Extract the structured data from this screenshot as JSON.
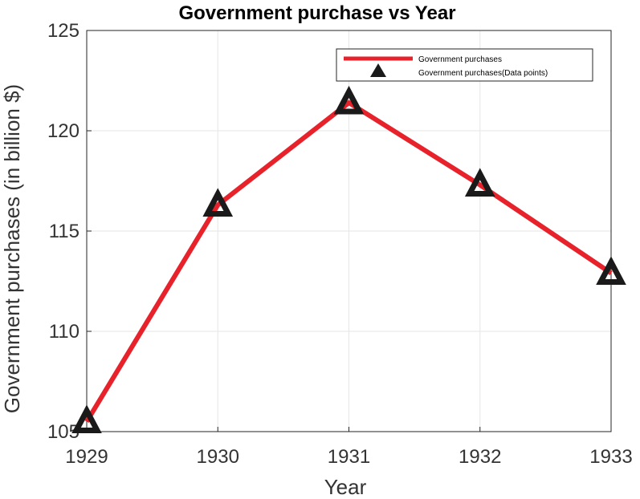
{
  "chart_data": {
    "type": "line",
    "title": "Government purchase vs Year",
    "xlabel": "Year",
    "ylabel": "Government purchases (in billion $)",
    "categories": [
      "1929",
      "1930",
      "1931",
      "1932",
      "1933"
    ],
    "x": [
      1929,
      1930,
      1931,
      1932,
      1933
    ],
    "series": [
      {
        "name": "Government purchases",
        "values": [
          105.5,
          116.3,
          121.4,
          117.3,
          112.9
        ],
        "color": "#e8222a"
      }
    ],
    "markers": {
      "name": "Government purchases(Data points)",
      "shape": "triangle",
      "color": "#1a1a1a"
    },
    "xlim": [
      1929,
      1933
    ],
    "ylim": [
      105,
      125
    ],
    "yticks": [
      105,
      110,
      115,
      120,
      125
    ],
    "grid": true,
    "legend_position": "top-right"
  }
}
